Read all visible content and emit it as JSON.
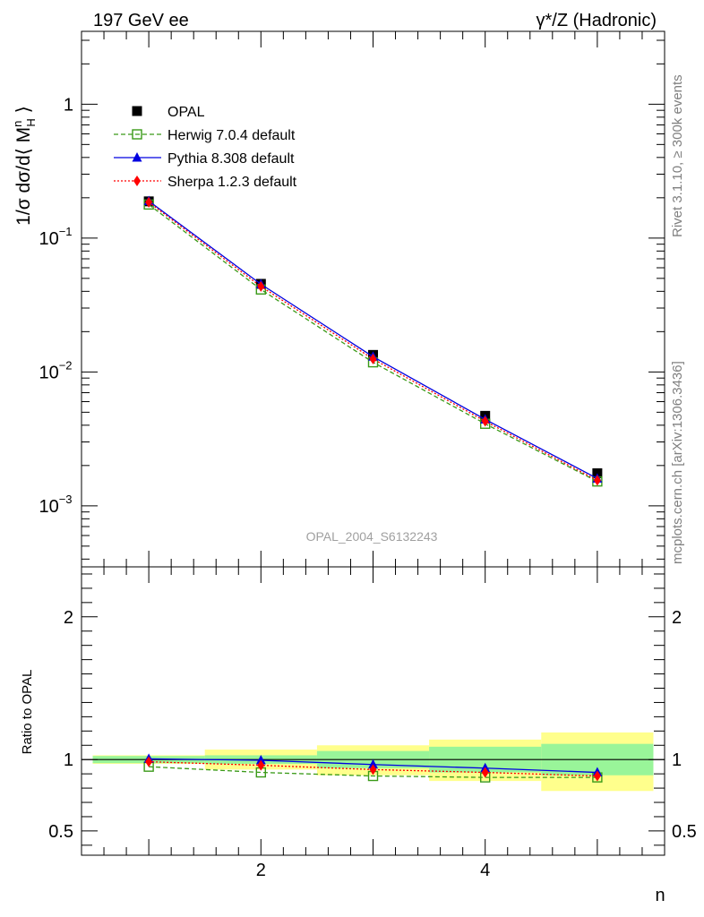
{
  "header": {
    "left": "197 GeV ee",
    "right": "γ*/Z (Hadronic)"
  },
  "side_labels": {
    "rivet": "Rivet 3.1.10, ≥ 300k events",
    "mcplots": "mcplots.cern.ch [arXiv:1306.3436]"
  },
  "watermark": "OPAL_2004_S6132243",
  "chart_data": [
    {
      "type": "scatter",
      "panel": "main",
      "ylabel": "1/σ dσ/d⟨ M_H^n ⟩",
      "yscale": "log",
      "xlim": [
        0.4,
        5.6
      ],
      "ylim": [
        0.00035,
        3.5
      ],
      "yticks": [
        {
          "value": 1,
          "label": "1"
        },
        {
          "value": 0.1,
          "label": "10",
          "exp": "−1"
        },
        {
          "value": 0.01,
          "label": "10",
          "exp": "−2"
        },
        {
          "value": 0.001,
          "label": "10",
          "exp": "−3"
        }
      ],
      "legend_position": "top-left",
      "x": [
        1,
        2,
        3,
        4,
        5
      ],
      "series": [
        {
          "name": "OPAL",
          "color": "#000000",
          "marker": "square",
          "values": [
            0.188,
            0.0455,
            0.0134,
            0.0047,
            0.00175
          ]
        },
        {
          "name": "Herwig 7.0.4 default",
          "color": "#3a9a18",
          "marker": "open-square",
          "line": "dashed",
          "values": [
            0.178,
            0.0413,
            0.0118,
            0.0041,
            0.00152
          ]
        },
        {
          "name": "Pythia 8.308 default",
          "color": "#0000e0",
          "marker": "triangle",
          "line": "solid",
          "values": [
            0.189,
            0.0452,
            0.013,
            0.00442,
            0.0016
          ]
        },
        {
          "name": "Sherpa 1.2.3 default",
          "color": "#ff0000",
          "marker": "diamond",
          "line": "dotted",
          "values": [
            0.185,
            0.0435,
            0.0125,
            0.00428,
            0.00155
          ]
        }
      ]
    },
    {
      "type": "line",
      "panel": "ratio",
      "xlabel": "n",
      "ylabel": "Ratio to OPAL",
      "xlim": [
        0.4,
        5.6
      ],
      "ylim": [
        0.33,
        2.35
      ],
      "xticks": [
        {
          "value": 2,
          "label": "2"
        },
        {
          "value": 4,
          "label": "4"
        }
      ],
      "yticks": [
        {
          "value": 0.5,
          "label": "0.5"
        },
        {
          "value": 1,
          "label": "1"
        },
        {
          "value": 2,
          "label": "2"
        }
      ],
      "x": [
        1,
        2,
        3,
        4,
        5
      ],
      "bands": [
        {
          "x_low": 0.5,
          "x_high": 1.5,
          "green": [
            0.975,
            1.025
          ],
          "yellow": [
            0.97,
            1.03
          ]
        },
        {
          "x_low": 1.5,
          "x_high": 2.5,
          "green": [
            0.97,
            1.03
          ],
          "yellow": [
            0.93,
            1.07
          ]
        },
        {
          "x_low": 2.5,
          "x_high": 3.5,
          "green": [
            0.94,
            1.06
          ],
          "yellow": [
            0.89,
            1.1
          ]
        },
        {
          "x_low": 3.5,
          "x_high": 4.5,
          "green": [
            0.91,
            1.09
          ],
          "yellow": [
            0.85,
            1.14
          ]
        },
        {
          "x_low": 4.5,
          "x_high": 5.5,
          "green": [
            0.89,
            1.11
          ],
          "yellow": [
            0.78,
            1.19
          ]
        }
      ],
      "series": [
        {
          "name": "Herwig 7.0.4 default",
          "color": "#3a9a18",
          "marker": "open-square",
          "line": "dashed",
          "values": [
            0.95,
            0.91,
            0.885,
            0.875,
            0.875
          ]
        },
        {
          "name": "Pythia 8.308 default",
          "color": "#0000e0",
          "marker": "triangle",
          "line": "solid",
          "values": [
            1.005,
            0.995,
            0.965,
            0.94,
            0.91
          ]
        },
        {
          "name": "Sherpa 1.2.3 default",
          "color": "#ff0000",
          "marker": "diamond",
          "line": "dotted",
          "values": [
            0.985,
            0.96,
            0.93,
            0.91,
            0.885
          ]
        }
      ]
    }
  ]
}
